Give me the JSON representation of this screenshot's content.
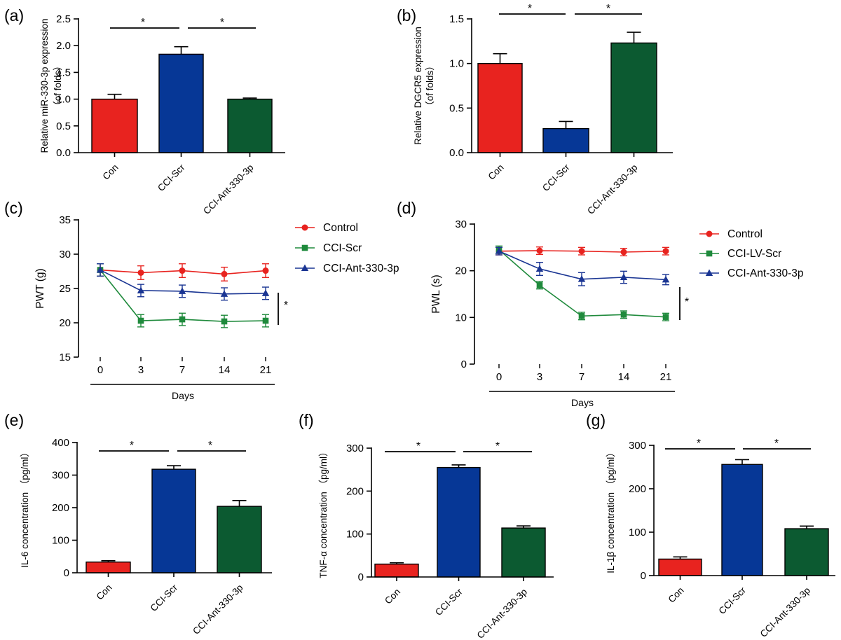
{
  "colors": {
    "con": "#e8231f",
    "scr": "#063796",
    "ant": "#0c5a31",
    "line_control": "#e8231f",
    "line_scr": "#1f8a3c",
    "line_ant": "#1a3593",
    "axis": "#000000"
  },
  "chart_data": [
    {
      "id": "a",
      "panel_label": "(a)",
      "type": "bar",
      "ylabel": "Relative miR-330-3p expression",
      "ylabel2": "（of folds）",
      "categories": [
        "Con",
        "CCI-Scr",
        "CCI-Ant-330-3p"
      ],
      "values": [
        1.0,
        1.84,
        1.0
      ],
      "errors": [
        0.09,
        0.14,
        0.02
      ],
      "ylim": [
        0,
        2.5
      ],
      "yticks": [
        0,
        0.5,
        1.0,
        1.5,
        2.0,
        2.5
      ],
      "ytick_labels": [
        "0.0",
        "0.5",
        "1.0",
        "1.5",
        "2.0",
        "2.5"
      ],
      "significance": [
        {
          "from": 0,
          "to": 1,
          "label": "*"
        },
        {
          "from": 1,
          "to": 2,
          "label": "*"
        }
      ]
    },
    {
      "id": "b",
      "panel_label": "(b)",
      "type": "bar",
      "ylabel": "Relative DGCR5 expression",
      "ylabel2": "（of folds）",
      "categories": [
        "Con",
        "CCI-Scr",
        "CCI-Ant-330-3p"
      ],
      "values": [
        1.0,
        0.27,
        1.23
      ],
      "errors": [
        0.11,
        0.08,
        0.12
      ],
      "ylim": [
        0,
        1.5
      ],
      "yticks": [
        0,
        0.5,
        1.0,
        1.5
      ],
      "ytick_labels": [
        "0.0",
        "0.5",
        "1.0",
        "1.5"
      ],
      "significance": [
        {
          "from": 0,
          "to": 1,
          "label": "*"
        },
        {
          "from": 1,
          "to": 2,
          "label": "*"
        }
      ]
    },
    {
      "id": "c",
      "panel_label": "(c)",
      "type": "line",
      "ylabel": "PWT (g)",
      "xlabel": "Days",
      "x": [
        0,
        3,
        7,
        14,
        21
      ],
      "x_labels": [
        "0",
        "3",
        "7",
        "14",
        "21"
      ],
      "ylim": [
        15,
        35
      ],
      "yticks": [
        15,
        20,
        25,
        30,
        35
      ],
      "ytick_labels": [
        "15",
        "20",
        "25",
        "30",
        "35"
      ],
      "series": [
        {
          "name": "Control",
          "marker": "circle",
          "values": [
            27.7,
            27.3,
            27.6,
            27.1,
            27.6
          ],
          "errors": [
            0.9,
            1.0,
            1.0,
            1.0,
            1.0
          ]
        },
        {
          "name": "CCI-Scr",
          "marker": "square",
          "values": [
            27.7,
            20.3,
            20.5,
            20.2,
            20.3
          ],
          "errors": [
            0.9,
            0.9,
            0.9,
            0.9,
            0.9
          ]
        },
        {
          "name": "CCI-Ant-330-3p",
          "marker": "triangle",
          "values": [
            27.7,
            24.7,
            24.6,
            24.2,
            24.3
          ],
          "errors": [
            0.9,
            0.9,
            0.9,
            0.9,
            0.9
          ]
        }
      ],
      "significance_label": "*"
    },
    {
      "id": "d",
      "panel_label": "(d)",
      "type": "line",
      "ylabel": "PWL (s)",
      "xlabel": "Days",
      "x": [
        0,
        3,
        7,
        14,
        21
      ],
      "x_labels": [
        "0",
        "3",
        "7",
        "14",
        "21"
      ],
      "ylim": [
        0,
        30
      ],
      "yticks": [
        0,
        10,
        20,
        30
      ],
      "ytick_labels": [
        "0",
        "10",
        "20",
        "30"
      ],
      "series": [
        {
          "name": "Control",
          "marker": "circle",
          "values": [
            24.2,
            24.3,
            24.2,
            24.0,
            24.2
          ],
          "errors": [
            0.8,
            0.8,
            0.8,
            0.8,
            0.8
          ]
        },
        {
          "name": "CCI-LV-Scr",
          "marker": "square",
          "values": [
            24.5,
            16.9,
            10.3,
            10.6,
            10.1
          ],
          "errors": [
            0.8,
            0.8,
            0.8,
            0.8,
            0.8
          ]
        },
        {
          "name": "CCI-Ant-330-3p",
          "marker": "triangle",
          "values": [
            24.2,
            20.4,
            18.2,
            18.6,
            18.1
          ],
          "errors": [
            0.8,
            1.4,
            1.4,
            1.3,
            1.1
          ]
        }
      ],
      "significance_label": "*"
    },
    {
      "id": "e",
      "panel_label": "(e)",
      "type": "bar",
      "ylabel": "IL-6  concentration （pg/ml）",
      "categories": [
        "Con",
        "CCI-Scr",
        "CCI-Ant-330-3p"
      ],
      "values": [
        33,
        318,
        204
      ],
      "errors": [
        4,
        11,
        18
      ],
      "ylim": [
        0,
        400
      ],
      "yticks": [
        0,
        100,
        200,
        300,
        400
      ],
      "ytick_labels": [
        "0",
        "100",
        "200",
        "300",
        "400"
      ],
      "significance": [
        {
          "from": 0,
          "to": 1,
          "label": "*"
        },
        {
          "from": 1,
          "to": 2,
          "label": "*"
        }
      ]
    },
    {
      "id": "f",
      "panel_label": "(f)",
      "type": "bar",
      "ylabel": "TNF-α  concentration （pg/ml）",
      "categories": [
        "Con",
        "CCI-Scr",
        "CCI-Ant-330-3p"
      ],
      "values": [
        30,
        255,
        114
      ],
      "errors": [
        3,
        6,
        5
      ],
      "ylim": [
        0,
        300
      ],
      "yticks": [
        0,
        100,
        200,
        300
      ],
      "ytick_labels": [
        "0",
        "100",
        "200",
        "300"
      ],
      "significance": [
        {
          "from": 0,
          "to": 1,
          "label": "*"
        },
        {
          "from": 1,
          "to": 2,
          "label": "*"
        }
      ]
    },
    {
      "id": "g",
      "panel_label": "(g)",
      "type": "bar",
      "ylabel": "IL-1β  concentration （pg/ml）",
      "categories": [
        "Con",
        "CCI-Scr",
        "CCI-Ant-330-3p"
      ],
      "values": [
        38,
        256,
        108
      ],
      "errors": [
        5,
        11,
        6
      ],
      "ylim": [
        0,
        300
      ],
      "yticks": [
        0,
        100,
        200,
        300
      ],
      "ytick_labels": [
        "0",
        "100",
        "200",
        "300"
      ],
      "significance": [
        {
          "from": 0,
          "to": 1,
          "label": "*"
        },
        {
          "from": 1,
          "to": 2,
          "label": "*"
        }
      ]
    }
  ]
}
